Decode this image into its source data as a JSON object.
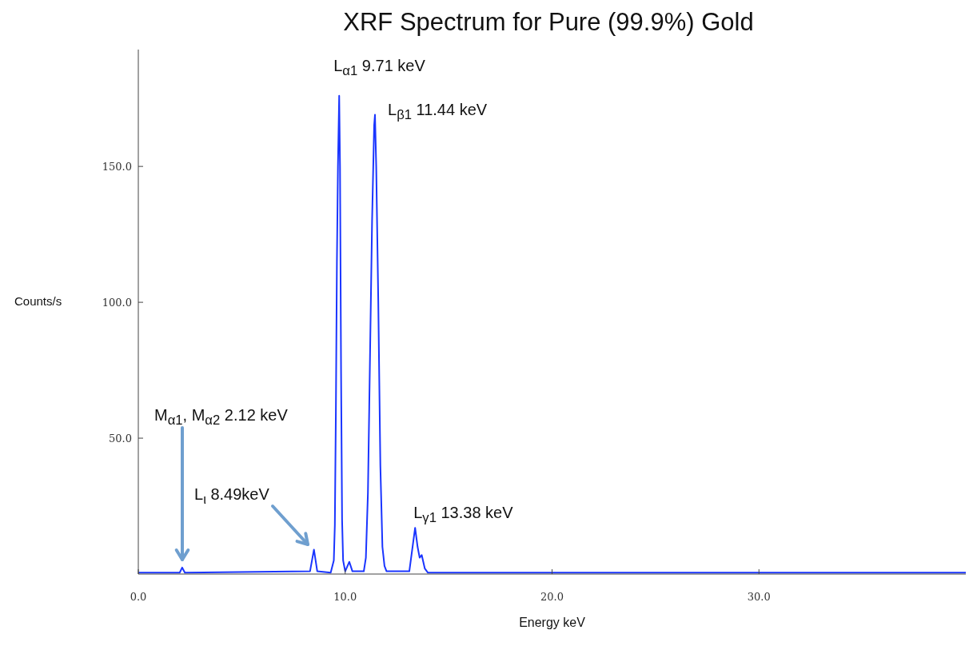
{
  "chart_data": {
    "type": "line",
    "title": "XRF Spectrum for Pure (99.9%) Gold",
    "xlabel": "Energy keV",
    "ylabel": "Counts/s",
    "x": [
      0,
      2.0,
      2.12,
      2.25,
      8.3,
      8.49,
      8.65,
      9.3,
      9.45,
      9.5,
      9.55,
      9.6,
      9.65,
      9.71,
      9.75,
      9.8,
      9.85,
      9.9,
      10.0,
      10.2,
      10.35,
      10.9,
      11.0,
      11.1,
      11.2,
      11.3,
      11.4,
      11.44,
      11.5,
      11.6,
      11.7,
      11.8,
      11.9,
      12.0,
      13.1,
      13.38,
      13.5,
      13.6,
      13.7,
      13.85,
      14.0,
      40
    ],
    "values": [
      0.5,
      0.5,
      2.4,
      0.5,
      1,
      9,
      1,
      0.5,
      5,
      18,
      60,
      115,
      150,
      176,
      150,
      75,
      20,
      5,
      1,
      4.5,
      1,
      1,
      6,
      30,
      80,
      130,
      165,
      169,
      150,
      100,
      40,
      10,
      3,
      1,
      1,
      17,
      10,
      6,
      7,
      2,
      0.5,
      0.5
    ],
    "color": "#1a35ff",
    "marker": "none",
    "line_style": "solid",
    "xlim": [
      0,
      40
    ],
    "xticks": [
      {
        "value": 0,
        "label": "0.0"
      },
      {
        "value": 10,
        "label": "10.0"
      },
      {
        "value": 20,
        "label": "20.0"
      },
      {
        "value": 30,
        "label": "30.0"
      }
    ],
    "ylim": [
      0,
      193
    ],
    "yticks": [
      {
        "value": 50,
        "label": "50.0"
      },
      {
        "value": 100,
        "label": "100.0"
      },
      {
        "value": 150,
        "label": "150.0"
      }
    ],
    "annotations": [
      {
        "text": "L$_{α1}$  9.71 keV",
        "x": 9.71,
        "y": 176
      },
      {
        "text": "L$_{β1}$  11.44 keV",
        "x": 11.44,
        "y": 169
      },
      "M$_{α1}$, M$_{α2}$ 2.12 keV",
      "L$_{ι}$ 8.49keV",
      {
        "text": "L$_{γ1}$ 13.38 keV",
        "x": 13.38,
        "y": 17
      }
    ]
  }
}
